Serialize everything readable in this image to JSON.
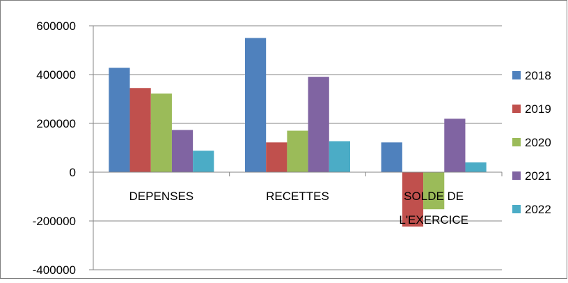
{
  "chart_data": {
    "type": "bar",
    "categories": [
      "DEPENSES",
      "RECETTES",
      "SOLDE DE L'EXERCICE"
    ],
    "category_label_lines": [
      [
        "DEPENSES"
      ],
      [
        "RECETTES"
      ],
      [
        "SOLDE DE",
        "L'EXERCICE"
      ]
    ],
    "series": [
      {
        "name": "2018",
        "color": "#4f81bd",
        "values": [
          428000,
          550000,
          122000
        ]
      },
      {
        "name": "2019",
        "color": "#c0504d",
        "values": [
          345000,
          122000,
          -223000
        ]
      },
      {
        "name": "2020",
        "color": "#9bbb59",
        "values": [
          322000,
          170000,
          -152000
        ]
      },
      {
        "name": "2021",
        "color": "#8064a2",
        "values": [
          173000,
          391000,
          219000
        ]
      },
      {
        "name": "2022",
        "color": "#4bacc6",
        "values": [
          88000,
          127000,
          40000
        ]
      }
    ],
    "ylim": [
      -400000,
      600000
    ],
    "yticks": [
      600000,
      400000,
      200000,
      0,
      -200000,
      -400000
    ],
    "ytick_labels": [
      "600000",
      "400000",
      "200000",
      "0",
      "-200000",
      "-400000"
    ],
    "grid": true,
    "legend": "right",
    "title": "",
    "xlabel": "",
    "ylabel": ""
  }
}
